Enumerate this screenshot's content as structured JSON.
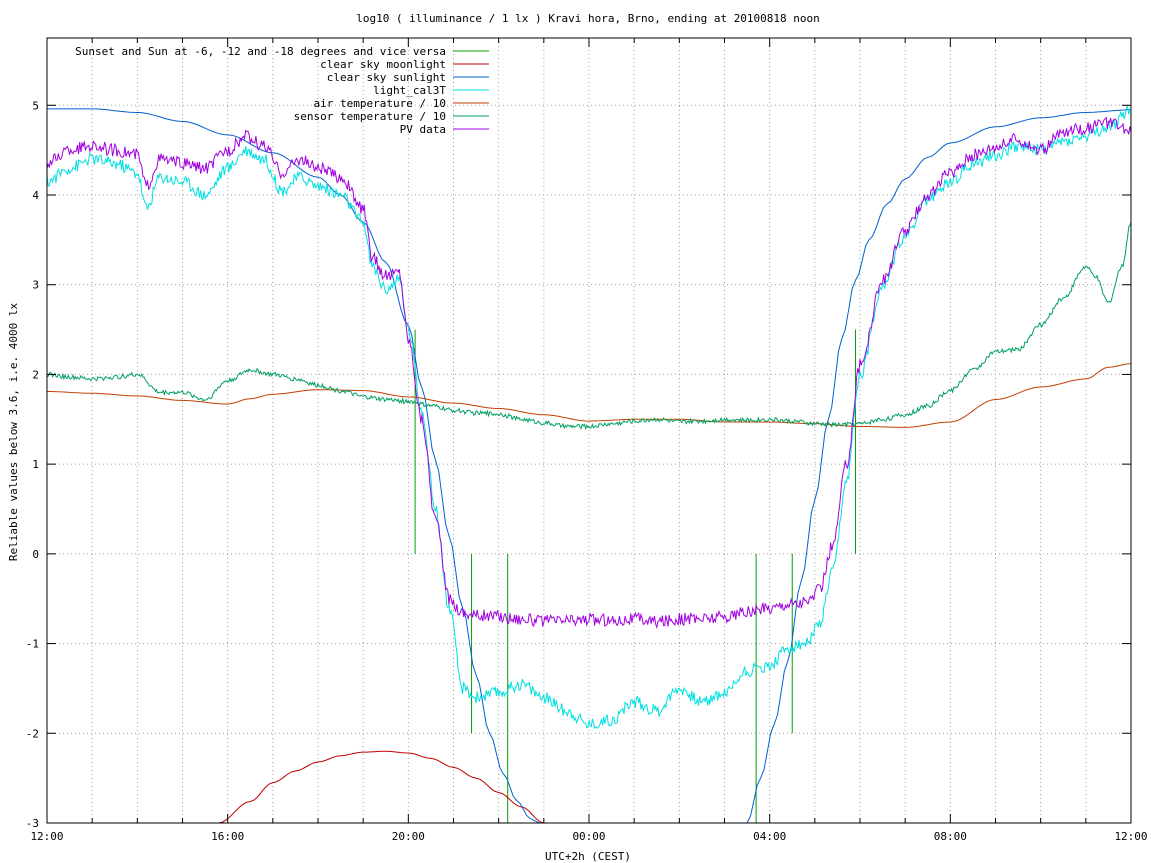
{
  "chart_data": {
    "type": "line",
    "title": "log10 ( illuminance / 1 lx ) Kravi hora, Brno, ending at 20100818 noon",
    "xlabel": "UTC+2h (CEST)",
    "ylabel": "Reliable values below 3.6, i.e. 4000 lx",
    "xlim": [
      12,
      36
    ],
    "ylim": [
      -3,
      5.75
    ],
    "grid": true,
    "legend_position": "top-left",
    "x_ticks": [
      {
        "x": 12,
        "label": "12:00"
      },
      {
        "x": 16,
        "label": "16:00"
      },
      {
        "x": 20,
        "label": "20:00"
      },
      {
        "x": 24,
        "label": "00:00"
      },
      {
        "x": 28,
        "label": "04:00"
      },
      {
        "x": 32,
        "label": "08:00"
      },
      {
        "x": 36,
        "label": "12:00"
      }
    ],
    "x_minor_step": 1,
    "y_ticks": [
      {
        "y": -3,
        "label": "-3"
      },
      {
        "y": -2,
        "label": "-2"
      },
      {
        "y": -1,
        "label": "-1"
      },
      {
        "y": 0,
        "label": "0"
      },
      {
        "y": 1,
        "label": "1"
      },
      {
        "y": 2,
        "label": "2"
      },
      {
        "y": 3,
        "label": "3"
      },
      {
        "y": 4,
        "label": "4"
      },
      {
        "y": 5,
        "label": "5"
      }
    ],
    "series": [
      {
        "name": "Sunset and Sun at -6, -12 and -18 degrees and vice versa",
        "color": "#00a000",
        "kind": "impulses",
        "x": [
          20.15,
          20.8,
          21.4,
          22.2,
          27.7,
          28.5,
          29.25,
          29.9
        ],
        "y": [
          2.5,
          0.0,
          -2.0,
          -3.0,
          -3.0,
          -2.0,
          0.0,
          2.5
        ]
      },
      {
        "name": "clear sky moonlight",
        "color": "#c00000",
        "x": [
          15.8,
          16.5,
          17.0,
          17.5,
          18.0,
          18.5,
          19.0,
          19.5,
          20.0,
          20.5,
          21.0,
          21.5,
          22.0,
          22.5,
          23.0
        ],
        "y": [
          -3.0,
          -2.76,
          -2.55,
          -2.42,
          -2.32,
          -2.25,
          -2.21,
          -2.2,
          -2.22,
          -2.28,
          -2.38,
          -2.5,
          -2.66,
          -2.82,
          -3.0
        ]
      },
      {
        "name": "clear sky sunlight",
        "color": "#0060d0",
        "x": [
          12,
          13,
          14,
          15,
          16,
          17,
          18,
          18.5,
          19,
          19.5,
          20,
          20.3,
          20.6,
          20.9,
          21.2,
          21.5,
          21.8,
          22.1,
          22.4,
          22.7,
          22.9,
          27.5,
          27.8,
          28.1,
          28.4,
          28.7,
          29.0,
          29.3,
          29.6,
          29.9,
          30.2,
          30.6,
          31,
          31.5,
          32,
          33,
          34,
          35,
          36
        ],
        "y": [
          4.96,
          4.96,
          4.92,
          4.82,
          4.67,
          4.47,
          4.2,
          4.0,
          3.7,
          3.25,
          2.55,
          1.85,
          1.05,
          0.2,
          -0.6,
          -1.35,
          -2.0,
          -2.45,
          -2.75,
          -2.95,
          -3.0,
          -3.0,
          -2.5,
          -1.9,
          -1.2,
          -0.3,
          0.6,
          1.5,
          2.4,
          3.05,
          3.5,
          3.9,
          4.18,
          4.42,
          4.58,
          4.76,
          4.86,
          4.92,
          4.95
        ]
      },
      {
        "name": "light_cal3T",
        "color": "#00e0e0",
        "x": [
          12,
          12.5,
          13,
          13.5,
          14,
          14.2,
          14.5,
          15,
          15.5,
          16,
          16.4,
          16.8,
          17.2,
          17.6,
          18,
          18.5,
          19,
          19.2,
          19.5,
          19.8,
          20,
          20.3,
          20.6,
          20.9,
          21.2,
          21.5,
          22,
          22.5,
          23,
          23.5,
          24,
          24.5,
          25,
          25.5,
          26,
          26.5,
          27,
          27.5,
          28,
          28.4,
          28.8,
          29.1,
          29.4,
          29.7,
          30,
          30.5,
          31,
          31.5,
          32,
          32.5,
          33,
          33.5,
          34,
          34.5,
          35,
          35.5,
          36
        ],
        "y": [
          4.15,
          4.3,
          4.4,
          4.35,
          4.25,
          3.85,
          4.2,
          4.15,
          4.0,
          4.3,
          4.5,
          4.4,
          4.05,
          4.2,
          4.1,
          4.0,
          3.7,
          3.2,
          2.95,
          3.05,
          2.5,
          1.6,
          0.5,
          -0.6,
          -1.5,
          -1.6,
          -1.55,
          -1.45,
          -1.6,
          -1.75,
          -1.9,
          -1.85,
          -1.65,
          -1.75,
          -1.5,
          -1.65,
          -1.55,
          -1.3,
          -1.25,
          -1.05,
          -1.0,
          -0.8,
          -0.2,
          0.8,
          2.0,
          3.0,
          3.55,
          3.95,
          4.15,
          4.35,
          4.45,
          4.55,
          4.5,
          4.6,
          4.65,
          4.75,
          4.95
        ]
      },
      {
        "name": "air temperature / 10",
        "color": "#c04000",
        "x": [
          12,
          13,
          14,
          15,
          16,
          16.5,
          17,
          18,
          19,
          20,
          21,
          22,
          23,
          24,
          25,
          26,
          27,
          28,
          29,
          30,
          31,
          32,
          33,
          34,
          35,
          35.5,
          36
        ],
        "y": [
          1.81,
          1.79,
          1.76,
          1.71,
          1.67,
          1.73,
          1.78,
          1.83,
          1.82,
          1.75,
          1.68,
          1.62,
          1.55,
          1.48,
          1.5,
          1.5,
          1.47,
          1.47,
          1.45,
          1.42,
          1.41,
          1.47,
          1.72,
          1.86,
          1.95,
          2.08,
          2.12
        ]
      },
      {
        "name": "sensor temperature / 10",
        "color": "#00a060",
        "x": [
          12,
          12.5,
          13,
          13.5,
          14,
          14.5,
          15,
          15.5,
          16,
          16.5,
          17,
          17.5,
          18,
          18.5,
          19,
          19.5,
          20,
          20.5,
          21,
          21.5,
          22,
          22.5,
          23,
          23.5,
          24,
          24.5,
          25,
          25.5,
          26,
          26.5,
          27,
          27.5,
          28,
          28.5,
          29,
          29.5,
          30,
          30.5,
          31,
          31.5,
          32,
          32.5,
          33,
          33.5,
          34,
          34.5,
          35,
          35.2,
          35.5,
          35.8,
          36
        ],
        "y": [
          2.0,
          1.97,
          1.95,
          1.97,
          2.0,
          1.8,
          1.8,
          1.72,
          1.93,
          2.05,
          2.0,
          1.95,
          1.88,
          1.82,
          1.75,
          1.72,
          1.7,
          1.65,
          1.6,
          1.57,
          1.56,
          1.5,
          1.46,
          1.42,
          1.42,
          1.45,
          1.48,
          1.5,
          1.47,
          1.48,
          1.5,
          1.49,
          1.5,
          1.48,
          1.45,
          1.44,
          1.45,
          1.5,
          1.55,
          1.65,
          1.82,
          2.05,
          2.25,
          2.28,
          2.55,
          2.85,
          3.2,
          3.1,
          2.8,
          3.2,
          3.7
        ]
      },
      {
        "name": "PV data",
        "color": "#a000e0",
        "x": [
          12,
          12.5,
          13,
          13.5,
          14,
          14.2,
          14.5,
          15,
          15.5,
          16,
          16.4,
          16.8,
          17.2,
          17.6,
          18,
          18.5,
          19,
          19.2,
          19.5,
          19.8,
          20,
          20.3,
          20.6,
          20.9,
          21.2,
          21.5,
          22,
          22.5,
          23,
          23.5,
          24,
          24.5,
          25,
          25.5,
          26,
          26.5,
          27,
          27.5,
          28,
          28.4,
          28.8,
          29.1,
          29.4,
          29.7,
          30,
          30.5,
          31,
          31.5,
          32,
          32.5,
          33,
          33.5,
          34,
          34.5,
          35,
          35.5,
          36
        ],
        "y": [
          4.35,
          4.5,
          4.55,
          4.5,
          4.45,
          4.1,
          4.4,
          4.35,
          4.3,
          4.5,
          4.65,
          4.55,
          4.25,
          4.4,
          4.3,
          4.2,
          3.85,
          3.3,
          3.1,
          3.15,
          2.4,
          1.5,
          0.4,
          -0.5,
          -0.65,
          -0.68,
          -0.7,
          -0.72,
          -0.75,
          -0.74,
          -0.73,
          -0.74,
          -0.72,
          -0.75,
          -0.73,
          -0.72,
          -0.7,
          -0.65,
          -0.6,
          -0.55,
          -0.55,
          -0.4,
          0.1,
          1.0,
          2.1,
          3.05,
          3.6,
          4.0,
          4.25,
          4.45,
          4.55,
          4.62,
          4.5,
          4.7,
          4.75,
          4.8,
          4.7
        ]
      }
    ]
  }
}
